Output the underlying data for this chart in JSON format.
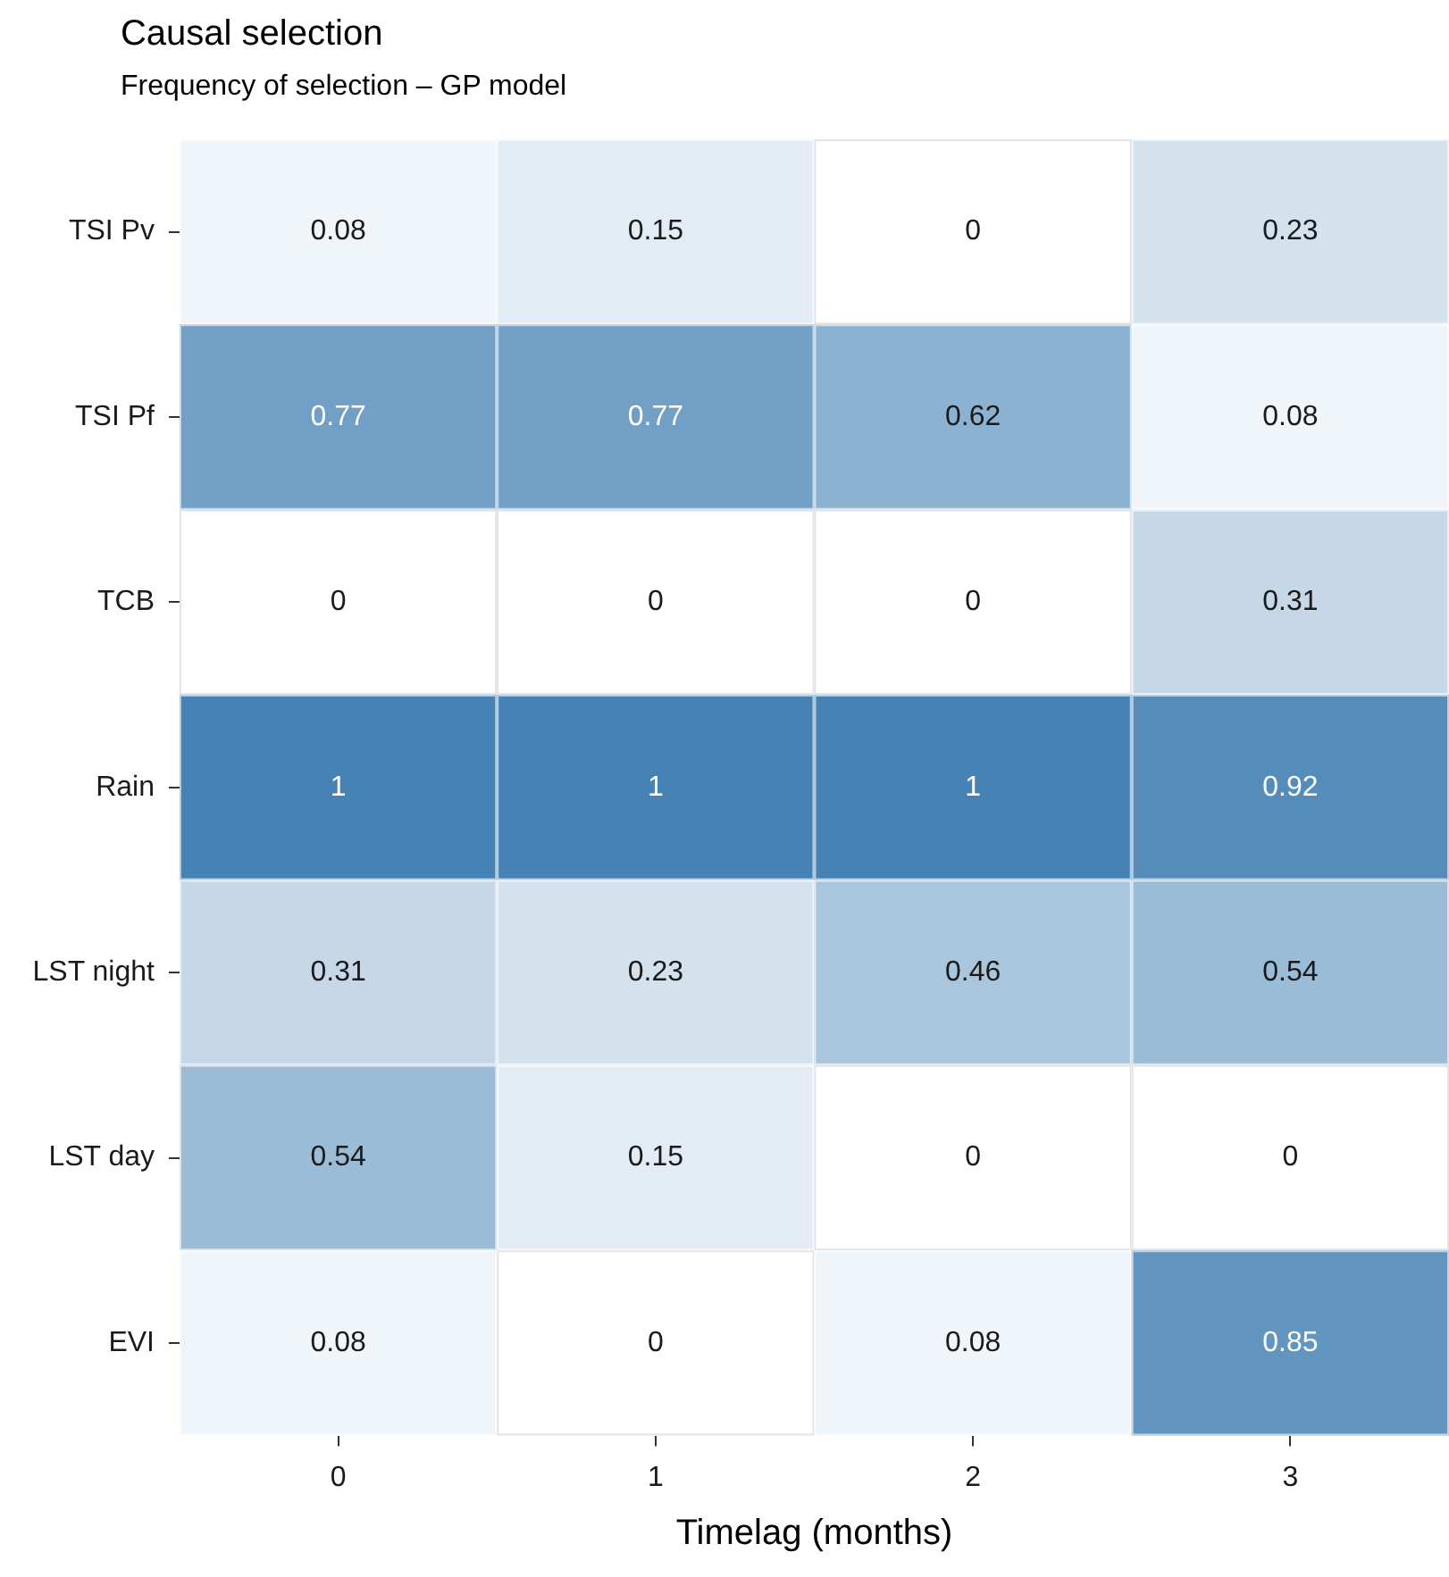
{
  "chart_data": {
    "type": "heatmap",
    "title": "Causal selection",
    "subtitle": "Frequency of selection – GP model",
    "xlabel": "Timelag (months)",
    "categories": [
      "0",
      "1",
      "2",
      "3"
    ],
    "y_categories": [
      "TSI Pv",
      "TSI Pf",
      "TCB",
      "Rain",
      "LST night",
      "LST day",
      "EVI"
    ],
    "cells": [
      [
        0.08,
        0.15,
        0,
        0.23
      ],
      [
        0.77,
        0.77,
        0.62,
        0.08
      ],
      [
        0,
        0,
        0,
        0.31
      ],
      [
        1,
        1,
        1,
        0.92
      ],
      [
        0.31,
        0.23,
        0.46,
        0.54
      ],
      [
        0.54,
        0.15,
        0,
        0
      ],
      [
        0.08,
        0,
        0.08,
        0.85
      ]
    ],
    "color": "#4682b4",
    "data_labels": true,
    "grid": false,
    "legend": false
  }
}
